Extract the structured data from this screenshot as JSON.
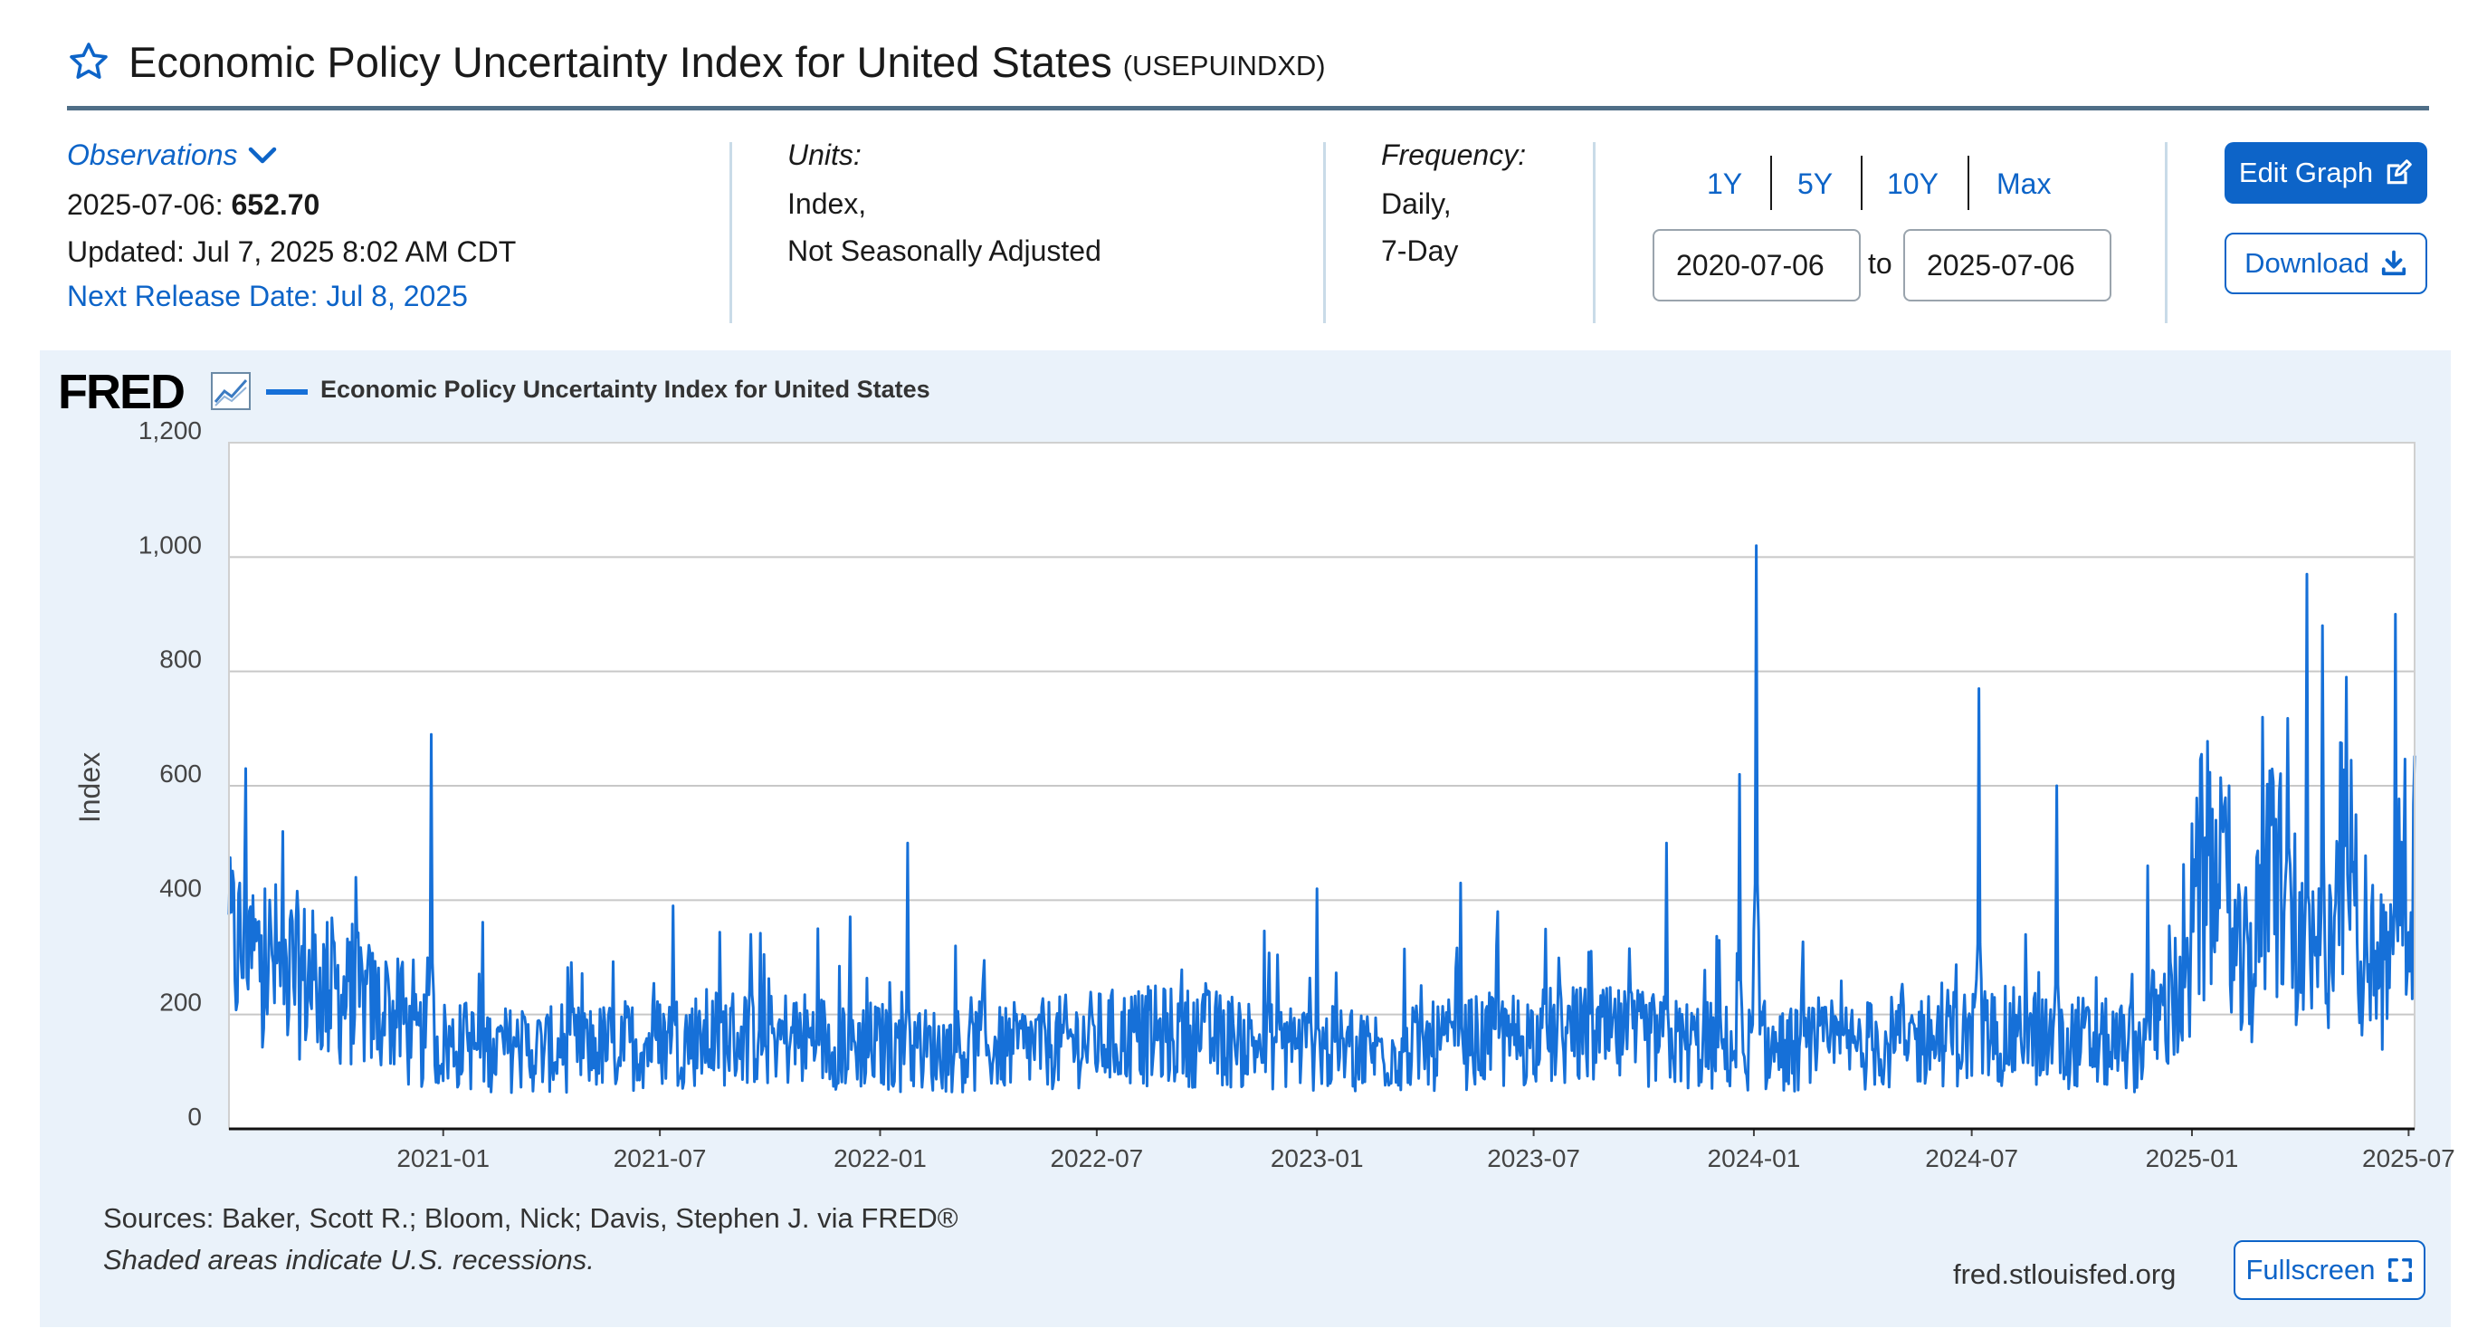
{
  "header": {
    "title": "Economic Policy Uncertainty Index for United States",
    "series_id": "(USEPUINDXD)",
    "star_icon": "star-outline-icon"
  },
  "observations": {
    "label": "Observations",
    "date": "2025-07-06",
    "sep": ":",
    "value": "652.70",
    "updated": "Updated: Jul 7, 2025 8:02 AM CDT",
    "next_release": "Next Release Date: Jul 8, 2025"
  },
  "units": {
    "label": "Units:",
    "line1": "Index,",
    "line2": "Not Seasonally Adjusted"
  },
  "frequency": {
    "label": "Frequency:",
    "line1": "Daily,",
    "line2": "7-Day"
  },
  "range": {
    "buttons": [
      "1Y",
      "5Y",
      "10Y",
      "Max"
    ],
    "start": "2020-07-06",
    "to": "to",
    "end": "2025-07-06"
  },
  "actions": {
    "edit_graph": "Edit Graph",
    "download": "Download",
    "fullscreen": "Fullscreen"
  },
  "colors": {
    "accent": "#0d64c8",
    "series": "#1670d8",
    "panel_bg": "#eaf2fa"
  },
  "chart_data": {
    "type": "line",
    "logo": "FRED",
    "legend": [
      "Economic Policy Uncertainty Index for United States"
    ],
    "ylabel": "Index",
    "xlabel": "",
    "ylim": [
      0,
      1200
    ],
    "y_ticks": [
      "0",
      "200",
      "400",
      "600",
      "800",
      "1,000",
      "1,200"
    ],
    "x_range": [
      "2020-07-06",
      "2025-07-06"
    ],
    "x_ticks": [
      "2021-01",
      "2021-07",
      "2022-01",
      "2022-07",
      "2023-01",
      "2023-07",
      "2024-01",
      "2024-07",
      "2025-01",
      "2025-07"
    ],
    "grid": true,
    "series": [
      {
        "name": "Economic Policy Uncertainty Index for United States",
        "frequency": "Daily",
        "sampled_points": [
          {
            "x": "2020-07-06",
            "y": 300
          },
          {
            "x": "2020-07-20",
            "y": 630
          },
          {
            "x": "2020-08-05",
            "y": 420
          },
          {
            "x": "2020-08-20",
            "y": 520
          },
          {
            "x": "2020-09-10",
            "y": 260
          },
          {
            "x": "2020-10-01",
            "y": 330
          },
          {
            "x": "2020-10-20",
            "y": 440
          },
          {
            "x": "2020-11-15",
            "y": 280
          },
          {
            "x": "2020-12-22",
            "y": 690
          },
          {
            "x": "2021-01-20",
            "y": 220
          },
          {
            "x": "2021-03-01",
            "y": 160
          },
          {
            "x": "2021-04-15",
            "y": 150
          },
          {
            "x": "2021-06-01",
            "y": 120
          },
          {
            "x": "2021-07-12",
            "y": 390
          },
          {
            "x": "2021-09-01",
            "y": 140
          },
          {
            "x": "2021-11-10",
            "y": 350
          },
          {
            "x": "2022-01-05",
            "y": 150
          },
          {
            "x": "2022-01-24",
            "y": 500
          },
          {
            "x": "2022-03-05",
            "y": 320
          },
          {
            "x": "2022-04-10",
            "y": 140
          },
          {
            "x": "2022-06-15",
            "y": 170
          },
          {
            "x": "2022-08-01",
            "y": 120
          },
          {
            "x": "2022-10-20",
            "y": 160
          },
          {
            "x": "2022-12-10",
            "y": 210
          },
          {
            "x": "2023-01-01",
            "y": 420
          },
          {
            "x": "2023-03-15",
            "y": 310
          },
          {
            "x": "2023-05-01",
            "y": 430
          },
          {
            "x": "2023-06-01",
            "y": 380
          },
          {
            "x": "2023-07-15",
            "y": 120
          },
          {
            "x": "2023-09-01",
            "y": 110
          },
          {
            "x": "2023-10-20",
            "y": 500
          },
          {
            "x": "2023-12-20",
            "y": 620
          },
          {
            "x": "2024-01-03",
            "y": 1020
          },
          {
            "x": "2024-02-15",
            "y": 180
          },
          {
            "x": "2024-04-20",
            "y": 170
          },
          {
            "x": "2024-06-01",
            "y": 100
          },
          {
            "x": "2024-07-07",
            "y": 770
          },
          {
            "x": "2024-08-15",
            "y": 340
          },
          {
            "x": "2024-09-10",
            "y": 600
          },
          {
            "x": "2024-10-15",
            "y": 100
          },
          {
            "x": "2024-11-25",
            "y": 460
          },
          {
            "x": "2025-01-05",
            "y": 310
          },
          {
            "x": "2025-02-01",
            "y": 600
          },
          {
            "x": "2025-03-01",
            "y": 720
          },
          {
            "x": "2025-04-07",
            "y": 970
          },
          {
            "x": "2025-04-20",
            "y": 880
          },
          {
            "x": "2025-05-10",
            "y": 790
          },
          {
            "x": "2025-06-01",
            "y": 260
          },
          {
            "x": "2025-06-20",
            "y": 900
          },
          {
            "x": "2025-07-06",
            "y": 652.7
          }
        ]
      }
    ]
  },
  "footer": {
    "sources": "Sources: Baker, Scott R.; Bloom, Nick; Davis, Stephen J. via FRED®",
    "recessions_note": "Shaded areas indicate U.S. recessions.",
    "site": "fred.stlouisfed.org"
  }
}
